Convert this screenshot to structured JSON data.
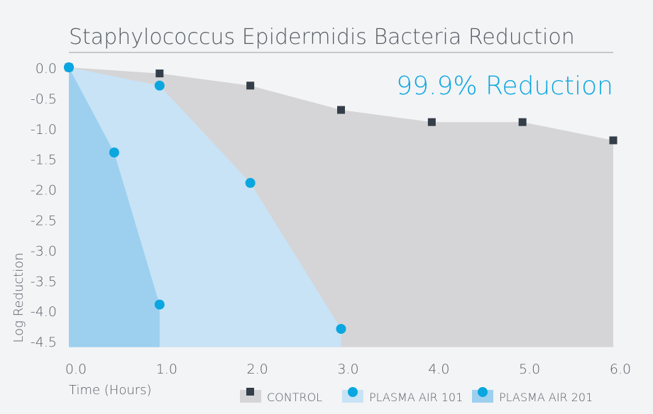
{
  "chart_data": {
    "type": "area",
    "title": "Staphylococcus Epidermidis Bacteria Reduction",
    "annotation": "99.9% Reduction",
    "xlabel": "Time (Hours)",
    "ylabel": "Log Reduction",
    "xlim": [
      0,
      6
    ],
    "ylim": [
      -4.6,
      0
    ],
    "x_ticks": [
      "0.0",
      "1.0",
      "2.0",
      "3.0",
      "4.0",
      "5.0",
      "6.0"
    ],
    "x_tick_values": [
      0,
      1,
      2,
      3,
      4,
      5,
      6
    ],
    "y_ticks": [
      "0.0",
      "-0.5",
      "-1.0",
      "-1.5",
      "-2.0",
      "-2.5",
      "-3.0",
      "-3.5",
      "-4.0",
      "-4.5"
    ],
    "y_tick_values": [
      0,
      -0.5,
      -1,
      -1.5,
      -2,
      -2.5,
      -3,
      -3.5,
      -4,
      -4.5
    ],
    "legend_position": "bottom-right",
    "series": [
      {
        "name": "CONTROL",
        "marker": "square",
        "fill": "#d5d5d7",
        "marker_color": "#343e48",
        "points": [
          [
            0,
            0
          ],
          [
            1,
            -0.1
          ],
          [
            2,
            -0.3
          ],
          [
            3,
            -0.7
          ],
          [
            4,
            -0.9
          ],
          [
            5,
            -0.9
          ],
          [
            6,
            -1.2
          ]
        ]
      },
      {
        "name": "PLASMA AIR 101",
        "marker": "circle",
        "fill": "#c8e3f6",
        "marker_color": "#0aa6df",
        "points": [
          [
            0,
            0
          ],
          [
            1,
            -0.3
          ],
          [
            2,
            -1.9
          ],
          [
            3,
            -4.3
          ]
        ]
      },
      {
        "name": "PLASMA AIR 201",
        "marker": "circle",
        "fill": "#9dd0ef",
        "marker_color": "#0aa6df",
        "points": [
          [
            0,
            0
          ],
          [
            0.5,
            -1.4
          ],
          [
            1,
            -3.9
          ]
        ]
      }
    ]
  }
}
